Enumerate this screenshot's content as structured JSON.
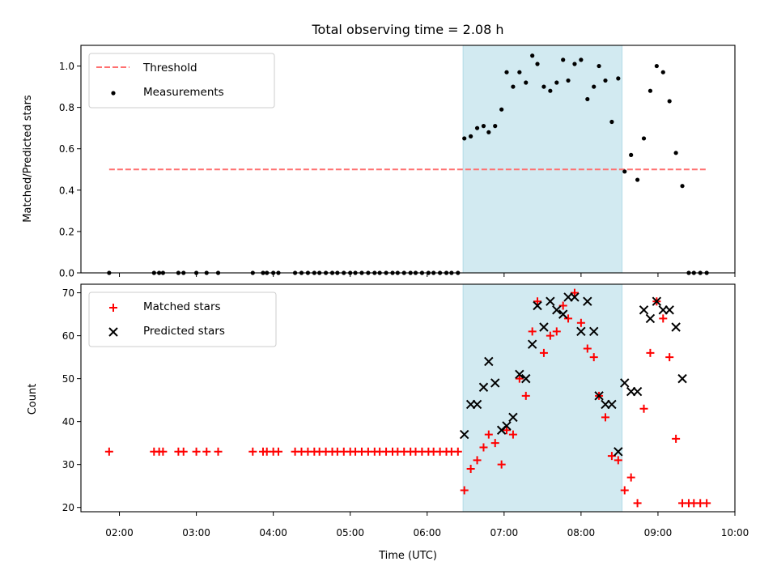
{
  "title": "Total observing time = 2.08 h",
  "colors": {
    "threshold": "#ff7070",
    "measurement": "#000000",
    "matched": "#ff0000",
    "predicted": "#000000",
    "span": "#add8e6"
  },
  "chart_data": [
    {
      "type": "scatter",
      "panel": "top",
      "ylabel": "Matched/Predicted stars",
      "ylim": [
        0,
        1.1
      ],
      "yticks": [
        "0.0",
        "0.2",
        "0.4",
        "0.6",
        "0.8",
        "1.0"
      ],
      "xlim": [
        "01:30",
        "10:00"
      ],
      "highlight_span": [
        "06:28",
        "08:32"
      ],
      "legend": {
        "position": "upper left",
        "entries": [
          "Threshold",
          "Measurements"
        ]
      },
      "threshold": {
        "name": "Threshold",
        "y": 0.5,
        "x_range": [
          "01:52",
          "09:38"
        ],
        "style": "dashed"
      },
      "series": [
        {
          "name": "Measurements",
          "points": [
            [
              "01:52",
              0
            ],
            [
              "02:27",
              0
            ],
            [
              "02:31",
              0
            ],
            [
              "02:34",
              0
            ],
            [
              "02:46",
              0
            ],
            [
              "02:50",
              0
            ],
            [
              "03:00",
              0
            ],
            [
              "03:08",
              0
            ],
            [
              "03:17",
              0
            ],
            [
              "03:44",
              0
            ],
            [
              "03:52",
              0
            ],
            [
              "03:55",
              0
            ],
            [
              "04:00",
              0
            ],
            [
              "04:04",
              0
            ],
            [
              "04:17",
              0
            ],
            [
              "04:22",
              0
            ],
            [
              "04:27",
              0
            ],
            [
              "04:32",
              0
            ],
            [
              "04:36",
              0
            ],
            [
              "04:41",
              0
            ],
            [
              "04:46",
              0
            ],
            [
              "04:50",
              0
            ],
            [
              "04:55",
              0
            ],
            [
              "05:00",
              0
            ],
            [
              "05:04",
              0
            ],
            [
              "05:09",
              0
            ],
            [
              "05:14",
              0
            ],
            [
              "05:19",
              0
            ],
            [
              "05:23",
              0
            ],
            [
              "05:28",
              0
            ],
            [
              "05:33",
              0
            ],
            [
              "05:37",
              0
            ],
            [
              "05:42",
              0
            ],
            [
              "05:47",
              0
            ],
            [
              "05:51",
              0
            ],
            [
              "05:56",
              0
            ],
            [
              "06:01",
              0
            ],
            [
              "06:05",
              0
            ],
            [
              "06:10",
              0
            ],
            [
              "06:15",
              0
            ],
            [
              "06:19",
              0
            ],
            [
              "06:24",
              0
            ],
            [
              "06:29",
              0.65
            ],
            [
              "06:34",
              0.66
            ],
            [
              "06:39",
              0.7
            ],
            [
              "06:44",
              0.71
            ],
            [
              "06:48",
              0.68
            ],
            [
              "06:53",
              0.71
            ],
            [
              "06:58",
              0.79
            ],
            [
              "07:02",
              0.97
            ],
            [
              "07:07",
              0.9
            ],
            [
              "07:12",
              0.97
            ],
            [
              "07:17",
              0.92
            ],
            [
              "07:22",
              1.05
            ],
            [
              "07:26",
              1.01
            ],
            [
              "07:31",
              0.9
            ],
            [
              "07:36",
              0.88
            ],
            [
              "07:41",
              0.92
            ],
            [
              "07:46",
              1.03
            ],
            [
              "07:50",
              0.93
            ],
            [
              "07:55",
              1.01
            ],
            [
              "08:00",
              1.03
            ],
            [
              "08:05",
              0.84
            ],
            [
              "08:10",
              0.9
            ],
            [
              "08:14",
              1.0
            ],
            [
              "08:19",
              0.93
            ],
            [
              "08:24",
              0.73
            ],
            [
              "08:29",
              0.94
            ],
            [
              "08:34",
              0.49
            ],
            [
              "08:39",
              0.57
            ],
            [
              "08:44",
              0.45
            ],
            [
              "08:49",
              0.65
            ],
            [
              "08:54",
              0.88
            ],
            [
              "08:59",
              1.0
            ],
            [
              "09:04",
              0.97
            ],
            [
              "09:09",
              0.83
            ],
            [
              "09:14",
              0.58
            ],
            [
              "09:19",
              0.42
            ],
            [
              "09:24",
              0
            ],
            [
              "09:28",
              0
            ],
            [
              "09:33",
              0
            ],
            [
              "09:38",
              0
            ]
          ]
        }
      ]
    },
    {
      "type": "scatter",
      "panel": "bottom",
      "xlabel": "Time (UTC)",
      "ylabel": "Count",
      "ylim": [
        19,
        72
      ],
      "yticks": [
        "20",
        "30",
        "40",
        "50",
        "60",
        "70"
      ],
      "xlim": [
        "01:30",
        "10:00"
      ],
      "xticks": [
        "02:00",
        "03:00",
        "04:00",
        "05:00",
        "06:00",
        "07:00",
        "08:00",
        "09:00",
        "10:00"
      ],
      "highlight_span": [
        "06:28",
        "08:32"
      ],
      "legend": {
        "position": "upper left",
        "entries": [
          "Matched stars",
          "Predicted stars"
        ]
      },
      "series": [
        {
          "name": "Matched stars",
          "marker": "plus",
          "points": [
            [
              "01:52",
              33
            ],
            [
              "02:27",
              33
            ],
            [
              "02:31",
              33
            ],
            [
              "02:34",
              33
            ],
            [
              "02:46",
              33
            ],
            [
              "02:50",
              33
            ],
            [
              "03:00",
              33
            ],
            [
              "03:08",
              33
            ],
            [
              "03:17",
              33
            ],
            [
              "03:44",
              33
            ],
            [
              "03:52",
              33
            ],
            [
              "03:55",
              33
            ],
            [
              "04:00",
              33
            ],
            [
              "04:04",
              33
            ],
            [
              "04:17",
              33
            ],
            [
              "04:22",
              33
            ],
            [
              "04:27",
              33
            ],
            [
              "04:32",
              33
            ],
            [
              "04:36",
              33
            ],
            [
              "04:41",
              33
            ],
            [
              "04:46",
              33
            ],
            [
              "04:50",
              33
            ],
            [
              "04:55",
              33
            ],
            [
              "05:00",
              33
            ],
            [
              "05:04",
              33
            ],
            [
              "05:09",
              33
            ],
            [
              "05:14",
              33
            ],
            [
              "05:19",
              33
            ],
            [
              "05:23",
              33
            ],
            [
              "05:28",
              33
            ],
            [
              "05:33",
              33
            ],
            [
              "05:37",
              33
            ],
            [
              "05:42",
              33
            ],
            [
              "05:47",
              33
            ],
            [
              "05:51",
              33
            ],
            [
              "05:56",
              33
            ],
            [
              "06:01",
              33
            ],
            [
              "06:05",
              33
            ],
            [
              "06:10",
              33
            ],
            [
              "06:15",
              33
            ],
            [
              "06:19",
              33
            ],
            [
              "06:24",
              33
            ],
            [
              "06:29",
              24
            ],
            [
              "06:34",
              29
            ],
            [
              "06:39",
              31
            ],
            [
              "06:44",
              34
            ],
            [
              "06:48",
              37
            ],
            [
              "06:53",
              35
            ],
            [
              "06:58",
              30
            ],
            [
              "07:02",
              38
            ],
            [
              "07:07",
              37
            ],
            [
              "07:12",
              50
            ],
            [
              "07:17",
              46
            ],
            [
              "07:22",
              61
            ],
            [
              "07:26",
              68
            ],
            [
              "07:31",
              56
            ],
            [
              "07:36",
              60
            ],
            [
              "07:41",
              61
            ],
            [
              "07:46",
              67
            ],
            [
              "07:50",
              64
            ],
            [
              "07:55",
              70
            ],
            [
              "08:00",
              63
            ],
            [
              "08:05",
              57
            ],
            [
              "08:10",
              55
            ],
            [
              "08:14",
              46
            ],
            [
              "08:19",
              41
            ],
            [
              "08:24",
              32
            ],
            [
              "08:29",
              31
            ],
            [
              "08:34",
              24
            ],
            [
              "08:39",
              27
            ],
            [
              "08:44",
              21
            ],
            [
              "08:49",
              43
            ],
            [
              "08:54",
              56
            ],
            [
              "08:59",
              68
            ],
            [
              "09:04",
              64
            ],
            [
              "09:09",
              55
            ],
            [
              "09:14",
              36
            ],
            [
              "09:19",
              21
            ],
            [
              "09:24",
              21
            ],
            [
              "09:28",
              21
            ],
            [
              "09:33",
              21
            ],
            [
              "09:38",
              21
            ]
          ]
        },
        {
          "name": "Predicted stars",
          "marker": "x",
          "points": [
            [
              "06:29",
              37
            ],
            [
              "06:34",
              44
            ],
            [
              "06:39",
              44
            ],
            [
              "06:44",
              48
            ],
            [
              "06:48",
              54
            ],
            [
              "06:53",
              49
            ],
            [
              "06:58",
              38
            ],
            [
              "07:02",
              39
            ],
            [
              "07:07",
              41
            ],
            [
              "07:12",
              51
            ],
            [
              "07:17",
              50
            ],
            [
              "07:22",
              58
            ],
            [
              "07:26",
              67
            ],
            [
              "07:31",
              62
            ],
            [
              "07:36",
              68
            ],
            [
              "07:41",
              66
            ],
            [
              "07:46",
              65
            ],
            [
              "07:50",
              69
            ],
            [
              "07:55",
              69
            ],
            [
              "08:00",
              61
            ],
            [
              "08:05",
              68
            ],
            [
              "08:10",
              61
            ],
            [
              "08:14",
              46
            ],
            [
              "08:19",
              44
            ],
            [
              "08:24",
              44
            ],
            [
              "08:29",
              33
            ],
            [
              "08:34",
              49
            ],
            [
              "08:39",
              47
            ],
            [
              "08:44",
              47
            ],
            [
              "08:49",
              66
            ],
            [
              "08:54",
              64
            ],
            [
              "08:59",
              68
            ],
            [
              "09:04",
              66
            ],
            [
              "09:09",
              66
            ],
            [
              "09:14",
              62
            ],
            [
              "09:19",
              50
            ]
          ]
        }
      ]
    }
  ]
}
